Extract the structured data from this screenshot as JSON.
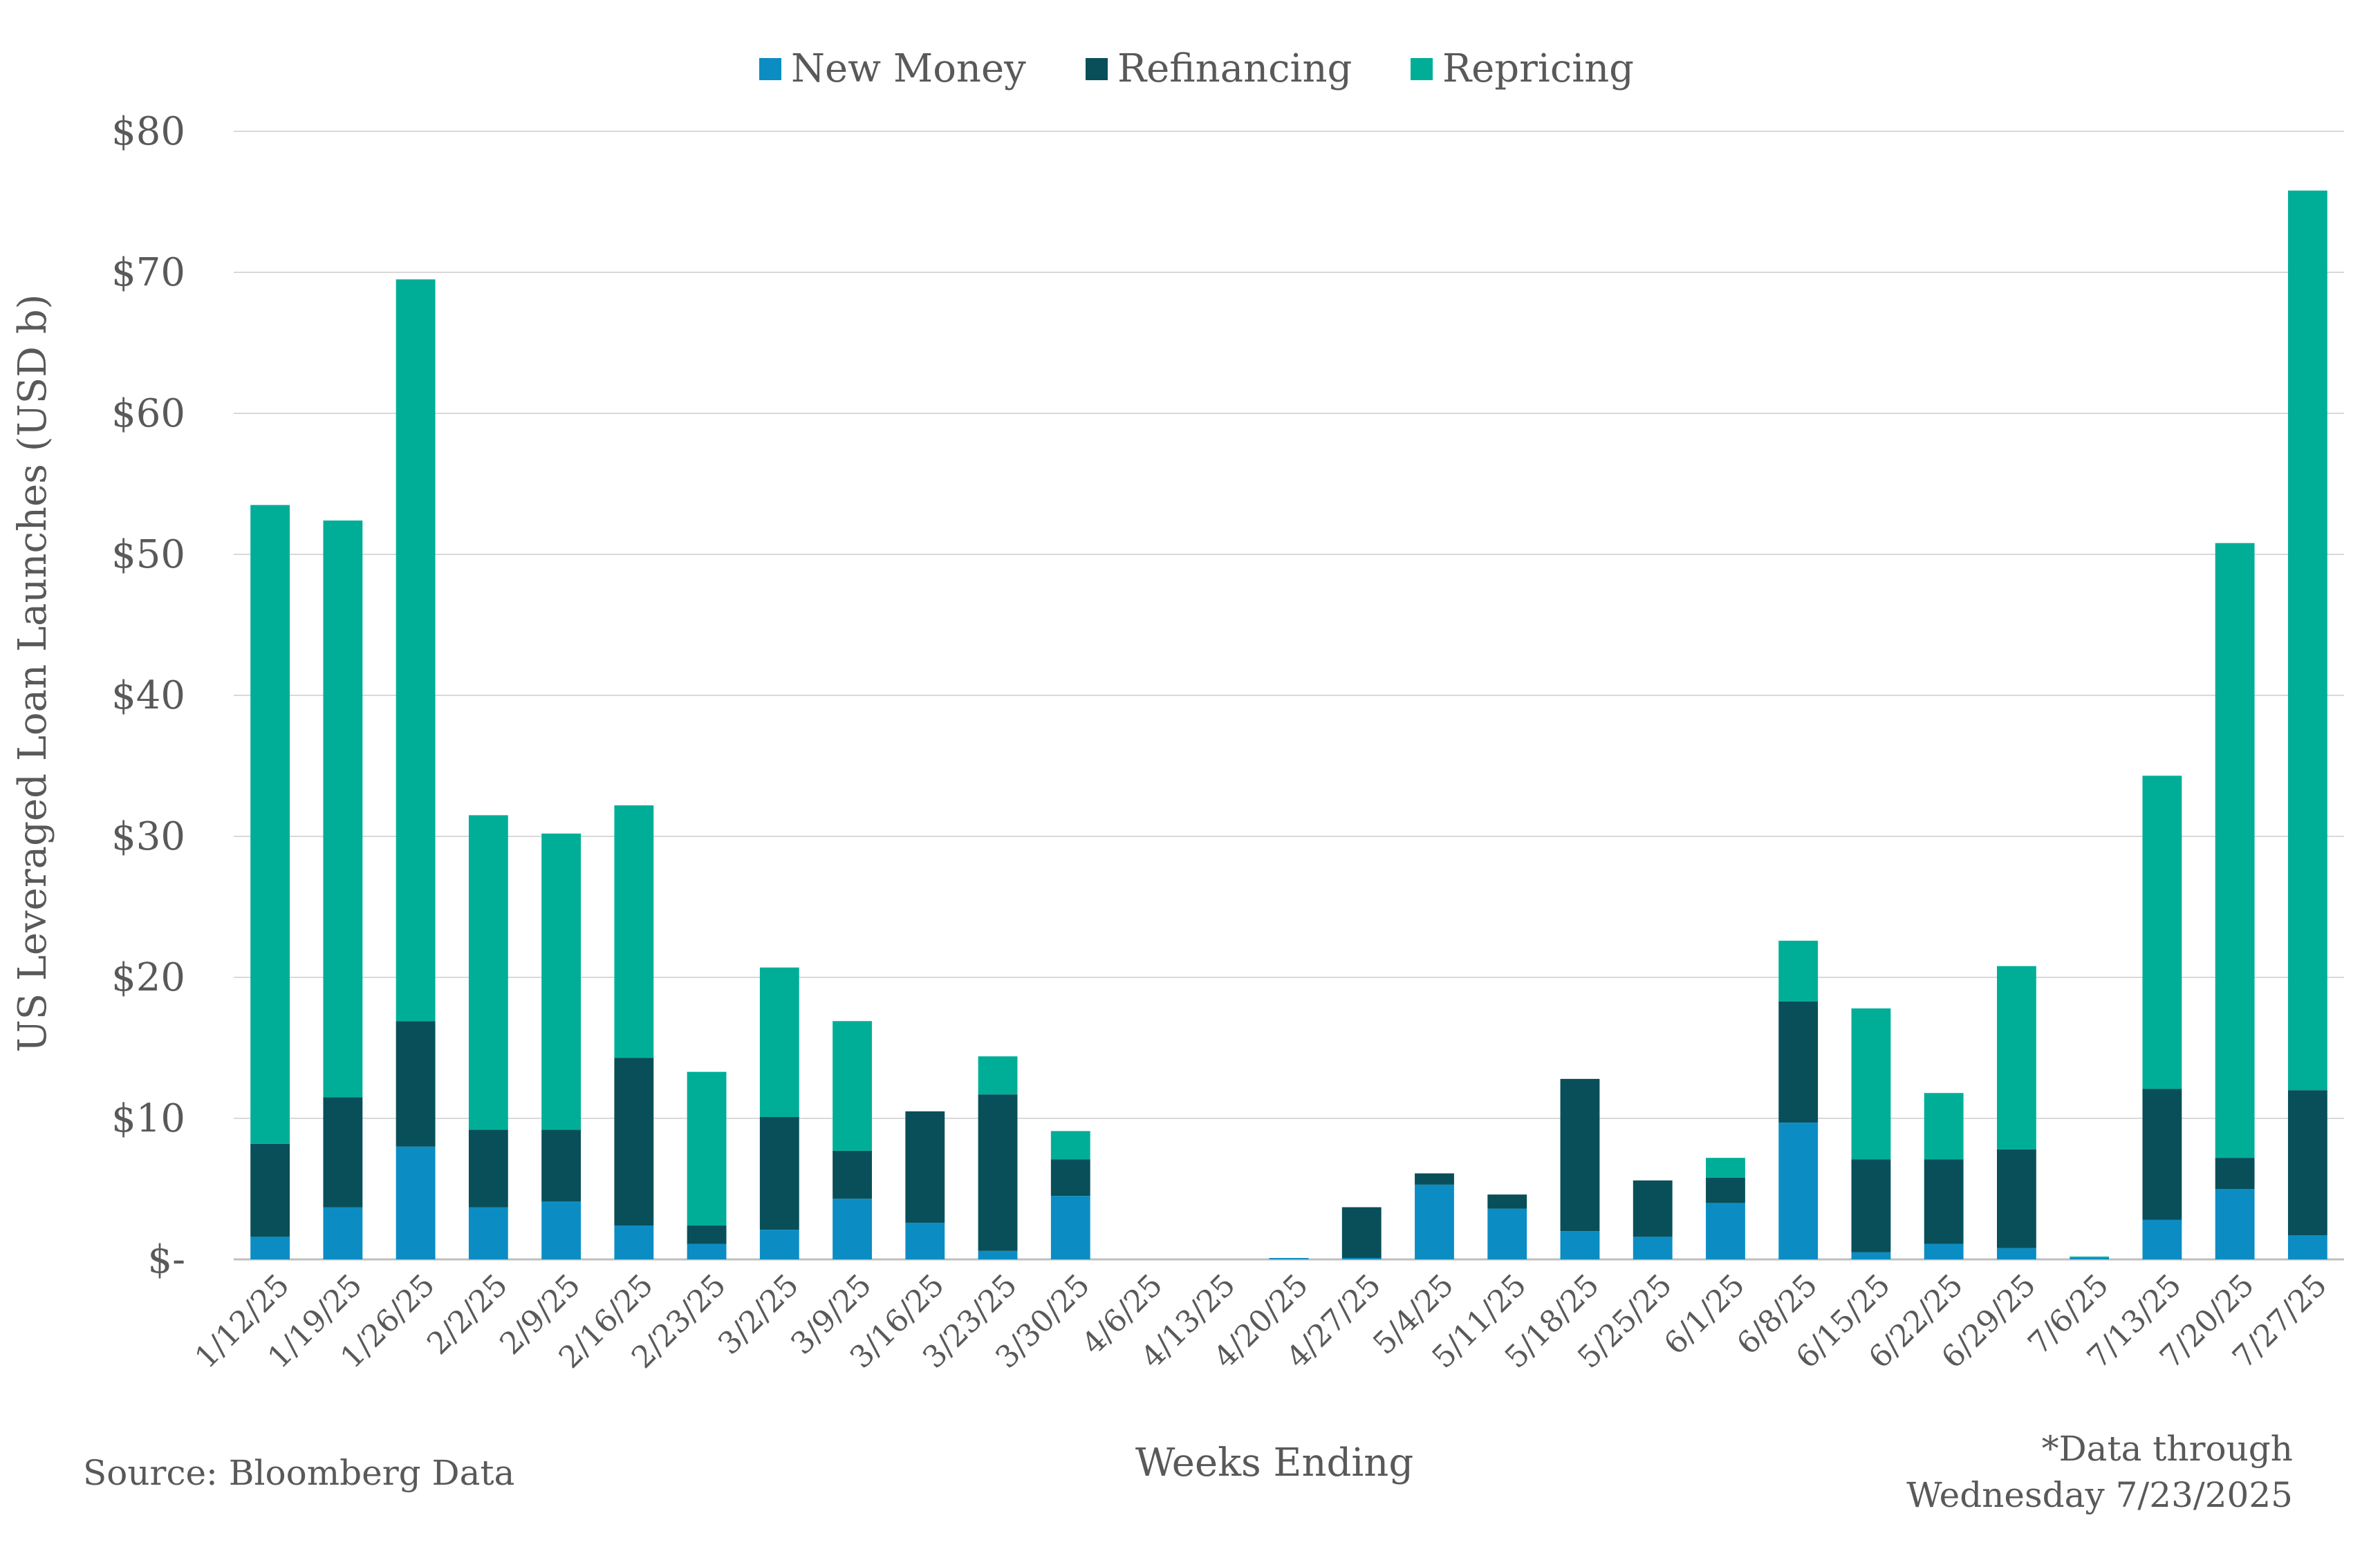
{
  "chart_data": {
    "type": "bar",
    "stacked": true,
    "title": "",
    "xlabel": "Weeks Ending",
    "ylabel": "US Leveraged Loan Launches (USD b)",
    "ylim": [
      0,
      80
    ],
    "yticks": [
      0,
      10,
      20,
      30,
      40,
      50,
      60,
      70,
      80
    ],
    "ytick_labels": [
      "$-",
      "$10",
      "$20",
      "$30",
      "$40",
      "$50",
      "$60",
      "$70",
      "$80"
    ],
    "grid": true,
    "legend_position": "top-center",
    "categories": [
      "1/12/25",
      "1/19/25",
      "1/26/25",
      "2/2/25",
      "2/9/25",
      "2/16/25",
      "2/23/25",
      "3/2/25",
      "3/9/25",
      "3/16/25",
      "3/23/25",
      "3/30/25",
      "4/6/25",
      "4/13/25",
      "4/20/25",
      "4/27/25",
      "5/4/25",
      "5/11/25",
      "5/18/25",
      "5/25/25",
      "6/1/25",
      "6/8/25",
      "6/15/25",
      "6/22/25",
      "6/29/25",
      "7/6/25",
      "7/13/25",
      "7/20/25",
      "7/27/25"
    ],
    "series": [
      {
        "name": "New Money",
        "color": "#0B8DC4",
        "values": [
          1.6,
          3.7,
          8.0,
          3.7,
          4.1,
          2.4,
          1.1,
          2.1,
          4.3,
          2.6,
          0.6,
          4.5,
          0,
          0,
          0.1,
          0.1,
          5.3,
          3.6,
          2.0,
          1.6,
          4.0,
          9.7,
          0.5,
          1.1,
          0.8,
          0.1,
          2.8,
          5.0,
          1.7
        ]
      },
      {
        "name": "Refinancing",
        "color": "#084F59",
        "values": [
          6.6,
          7.8,
          8.9,
          5.5,
          5.1,
          11.9,
          1.3,
          8.0,
          3.4,
          7.9,
          11.1,
          2.6,
          0,
          0,
          0,
          3.6,
          0.8,
          1.0,
          10.8,
          4.0,
          1.8,
          8.6,
          6.6,
          6.0,
          7.0,
          0,
          9.3,
          2.2,
          10.3
        ]
      },
      {
        "name": "Repricing",
        "color": "#00AE98",
        "values": [
          45.3,
          40.9,
          52.6,
          22.3,
          21.0,
          17.9,
          10.9,
          10.6,
          9.2,
          0,
          2.7,
          2.0,
          0,
          0,
          0,
          0,
          0,
          0,
          0,
          0,
          1.4,
          4.3,
          10.7,
          4.7,
          13.0,
          0.1,
          22.2,
          43.6,
          63.8
        ]
      }
    ]
  },
  "notes": {
    "source": "Source: Bloomberg Data",
    "data_through_line1": "*Data through",
    "data_through_line2": "Wednesday 7/23/2025"
  }
}
